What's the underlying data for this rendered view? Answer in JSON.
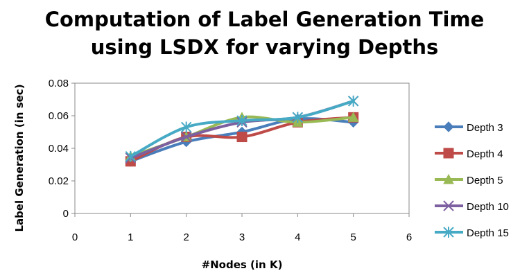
{
  "chart_data": {
    "type": "line",
    "title_line1": "Computation of Label Generation Time",
    "title_line2": "using LSDX  for varying Depths",
    "xlabel": "#Nodes (in K)",
    "ylabel": "Label Generation (in sec)",
    "xlim": [
      0,
      6
    ],
    "ylim": [
      0,
      0.08
    ],
    "xticks": [
      "0",
      "1",
      "2",
      "3",
      "4",
      "5",
      "6"
    ],
    "yticks": [
      "0",
      "0.02",
      "0.04",
      "0.06",
      "0.08"
    ],
    "legend_position": "right",
    "grid": false,
    "x": [
      1,
      2,
      3,
      4,
      5
    ],
    "series": [
      {
        "name": "Depth 3",
        "color": "#4a7ebb",
        "marker": "diamond",
        "values": [
          0.032,
          0.044,
          0.05,
          0.058,
          0.056
        ]
      },
      {
        "name": "Depth 4",
        "color": "#be4b48",
        "marker": "square",
        "values": [
          0.032,
          0.047,
          0.047,
          0.056,
          0.059
        ]
      },
      {
        "name": "Depth 5",
        "color": "#98b954",
        "marker": "triangle",
        "values": [
          0.035,
          0.047,
          0.059,
          0.056,
          0.059
        ]
      },
      {
        "name": "Depth 10",
        "color": "#7d60a0",
        "marker": "x",
        "values": [
          0.034,
          0.047,
          0.056,
          0.059,
          0.069
        ]
      },
      {
        "name": "Depth 15",
        "color": "#46aac5",
        "marker": "star",
        "values": [
          0.035,
          0.053,
          0.057,
          0.059,
          0.069
        ]
      }
    ]
  }
}
